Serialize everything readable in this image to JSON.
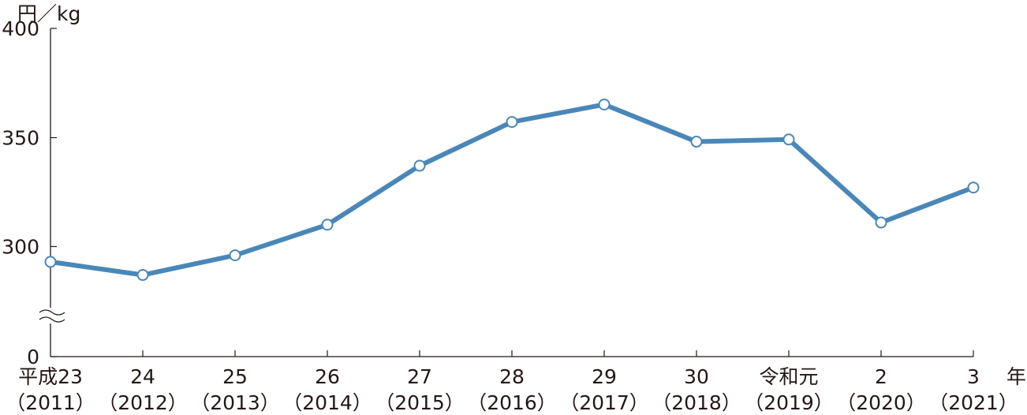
{
  "chart_data": {
    "type": "line",
    "ylabel": "円／kg",
    "xlabel": "年",
    "y_ticks": [
      "0",
      "300",
      "350",
      "400"
    ],
    "y_axis_break": true,
    "ylim": [
      280,
      400
    ],
    "grid": false,
    "categories": [
      {
        "era": "平成23",
        "year": "（2011）"
      },
      {
        "era": "24",
        "year": "（2012）"
      },
      {
        "era": "25",
        "year": "（2013）"
      },
      {
        "era": "26",
        "year": "（2014）"
      },
      {
        "era": "27",
        "year": "（2015）"
      },
      {
        "era": "28",
        "year": "（2016）"
      },
      {
        "era": "29",
        "year": "（2017）"
      },
      {
        "era": "30",
        "year": "（2018）"
      },
      {
        "era": "令和元",
        "year": "（2019）"
      },
      {
        "era": "2",
        "year": "（2020）"
      },
      {
        "era": "3",
        "year": "（2021）"
      }
    ],
    "values": [
      293,
      287,
      296,
      310,
      337,
      357,
      365,
      348,
      349,
      311,
      327
    ],
    "line_color": "#4a87b8",
    "marker": "open-circle"
  }
}
